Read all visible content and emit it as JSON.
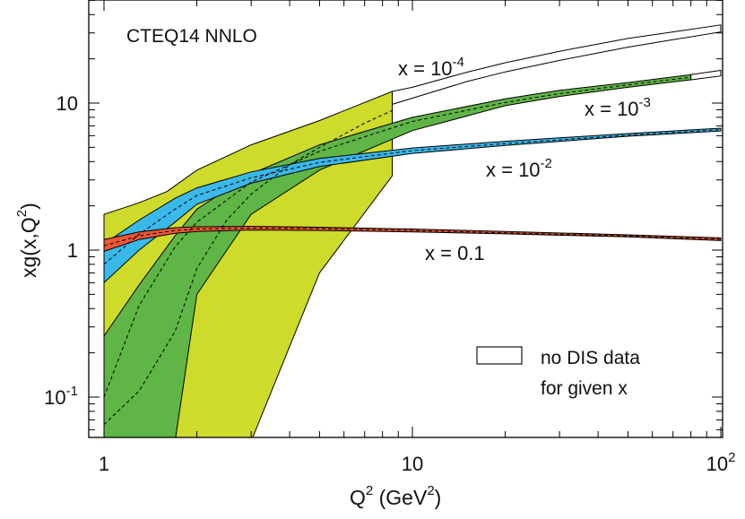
{
  "colors": {
    "x1e-4_band": "#cfdb2a",
    "x1e-3_band": "#5fb545",
    "x1e-2_band": "#3ab8ea",
    "x0.1_band": "#ee5634",
    "nodata_band": "#ffffff",
    "outline": "#000000"
  },
  "chart_data": {
    "type": "area",
    "title": "CTEQ14 NNLO",
    "xlabel": "Q",
    "xlabel_sup": "2",
    "xlabel_unit": " (GeV",
    "xlabel_unit_sup": "2",
    "xlabel_unit_close": ")",
    "ylabel_main": "xg(x,Q",
    "ylabel_sup": "2",
    "ylabel_close": ")",
    "x_scale": "log",
    "y_scale": "log",
    "xlim": [
      1,
      100
    ],
    "ylim": [
      0.05,
      40
    ],
    "x_ticks": [
      {
        "value": 1,
        "base": "1",
        "exp": ""
      },
      {
        "value": 10,
        "base": "10",
        "exp": ""
      },
      {
        "value": 100,
        "base": "10",
        "exp": "2"
      }
    ],
    "y_ticks": [
      {
        "value": 0.1,
        "base": "10",
        "exp": "-1"
      },
      {
        "value": 1,
        "base": "1",
        "exp": ""
      },
      {
        "value": 10,
        "base": "10",
        "exp": ""
      }
    ],
    "grid": false,
    "legend": {
      "placement": "bottom-right",
      "line1": "no DIS data",
      "line2": "for given x"
    },
    "series": [
      {
        "key": "x1e-4",
        "label_base": "x = 10",
        "label_exp": "-4",
        "x": [
          1,
          1.3,
          1.6,
          2,
          3,
          5,
          8.6
        ],
        "upper": [
          1.75,
          2.1,
          2.5,
          3.5,
          5.2,
          7.6,
          12
        ],
        "lower": [
          0.05,
          0.05,
          0.05,
          0.05,
          0.05,
          0.7,
          3.2
        ],
        "central_x": [
          1,
          1.3,
          1.7,
          2,
          2.5,
          3,
          4,
          5,
          7,
          8.6
        ],
        "central": [
          0.065,
          0.11,
          0.28,
          0.75,
          1.6,
          2.4,
          3.8,
          5.0,
          7.3,
          8.9
        ],
        "nodata_x": [
          8.6,
          10,
          15,
          20,
          30,
          50,
          70,
          100
        ],
        "nodata_upper": [
          12,
          12.8,
          16.2,
          18.8,
          22.5,
          27.5,
          30.5,
          34
        ],
        "nodata_lower": [
          9.8,
          10.8,
          14,
          16.3,
          19.5,
          24,
          27,
          30.5
        ]
      },
      {
        "key": "x1e-3",
        "label_base": "x = 10",
        "label_exp": "-3",
        "x": [
          1,
          1.3,
          1.7,
          2,
          3,
          5,
          10,
          20,
          30,
          50,
          80
        ],
        "upper": [
          0.26,
          0.58,
          1.25,
          1.9,
          3.3,
          5.2,
          8.0,
          10.7,
          12.2,
          13.8,
          15.6
        ],
        "lower": [
          0.05,
          0.05,
          0.05,
          0.5,
          1.75,
          3.5,
          6.5,
          9.6,
          11.1,
          12.8,
          14.4
        ],
        "central_x": [
          1,
          1.3,
          1.7,
          2,
          3,
          5,
          10,
          20,
          30,
          50,
          80
        ],
        "central": [
          0.1,
          0.42,
          1.05,
          1.55,
          2.9,
          4.7,
          7.5,
          10.1,
          11.6,
          13.3,
          15.0
        ],
        "nodata_x": [
          80,
          100
        ],
        "nodata_upper": [
          15.6,
          16.7
        ],
        "nodata_lower": [
          14.4,
          15.3
        ]
      },
      {
        "key": "x1e-2",
        "label_base": "x = 10",
        "label_exp": "-2",
        "x": [
          1,
          1.3,
          1.7,
          2,
          3,
          5,
          10,
          20,
          50,
          100
        ],
        "upper": [
          1.1,
          1.6,
          2.25,
          2.65,
          3.4,
          4.2,
          4.95,
          5.5,
          6.2,
          6.75
        ],
        "lower": [
          0.6,
          1.0,
          1.55,
          2.05,
          2.85,
          3.7,
          4.55,
          5.15,
          5.95,
          6.45
        ],
        "central_x": [
          1,
          1.3,
          1.7,
          2,
          3,
          5,
          10,
          20,
          50,
          100
        ],
        "central": [
          0.8,
          1.28,
          1.9,
          2.35,
          3.1,
          3.95,
          4.75,
          5.3,
          6.05,
          6.6
        ]
      },
      {
        "key": "x0.1",
        "label_base": "x = 0.1",
        "label_exp": "",
        "x": [
          1,
          1.3,
          1.7,
          2,
          3,
          5,
          10,
          20,
          50,
          100
        ],
        "upper": [
          1.18,
          1.33,
          1.42,
          1.44,
          1.45,
          1.43,
          1.39,
          1.34,
          1.27,
          1.21
        ],
        "lower": [
          0.98,
          1.18,
          1.3,
          1.34,
          1.37,
          1.36,
          1.33,
          1.29,
          1.23,
          1.16
        ],
        "central_x": [
          1,
          1.3,
          1.7,
          2,
          3,
          5,
          10,
          20,
          50,
          100
        ],
        "central": [
          1.07,
          1.25,
          1.36,
          1.39,
          1.41,
          1.4,
          1.36,
          1.31,
          1.25,
          1.185
        ]
      }
    ]
  }
}
